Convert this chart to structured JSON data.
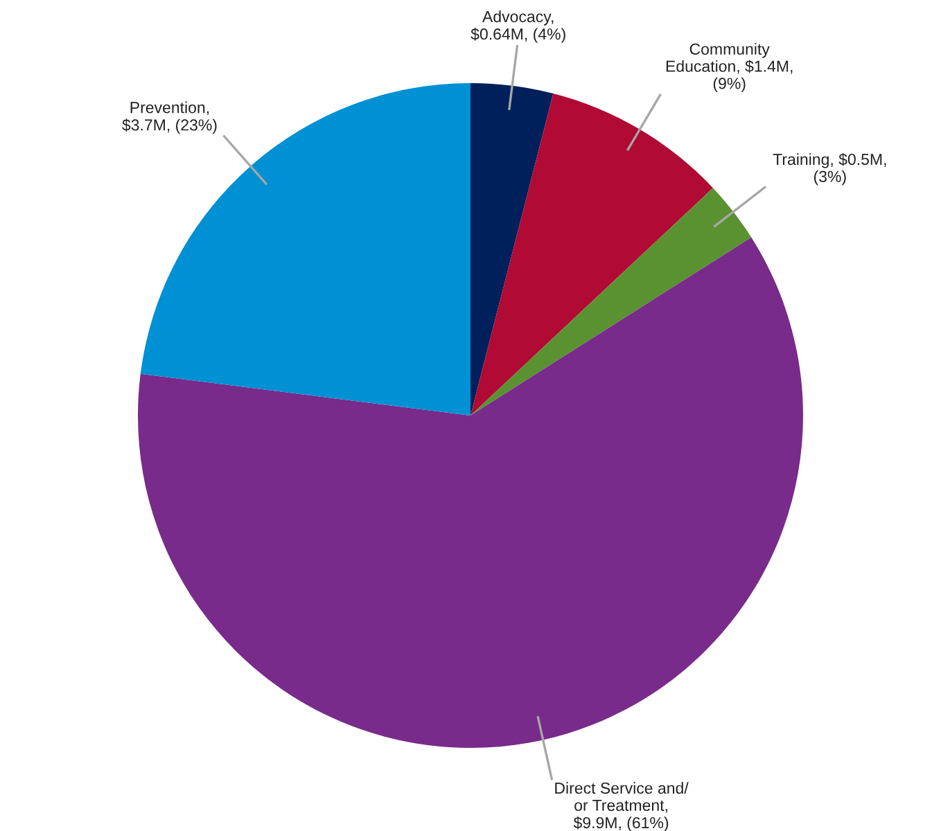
{
  "chart_data": {
    "type": "pie",
    "categories": [
      "Advocacy,\n$0.64M, (4%)",
      "Community\nEducation, $1.4M,\n(9%)",
      "Training, $0.5M,\n(3%)",
      "Direct Service and/\nor Treatment,\n$9.9M, (61%)",
      "Prevention,\n$3.7M, (23%)"
    ],
    "values": [
      4,
      9,
      3,
      61,
      23
    ],
    "colors": [
      "#00205b",
      "#b00a35",
      "#5a9232",
      "#782b8a",
      "#0090d4"
    ],
    "legend": false
  }
}
